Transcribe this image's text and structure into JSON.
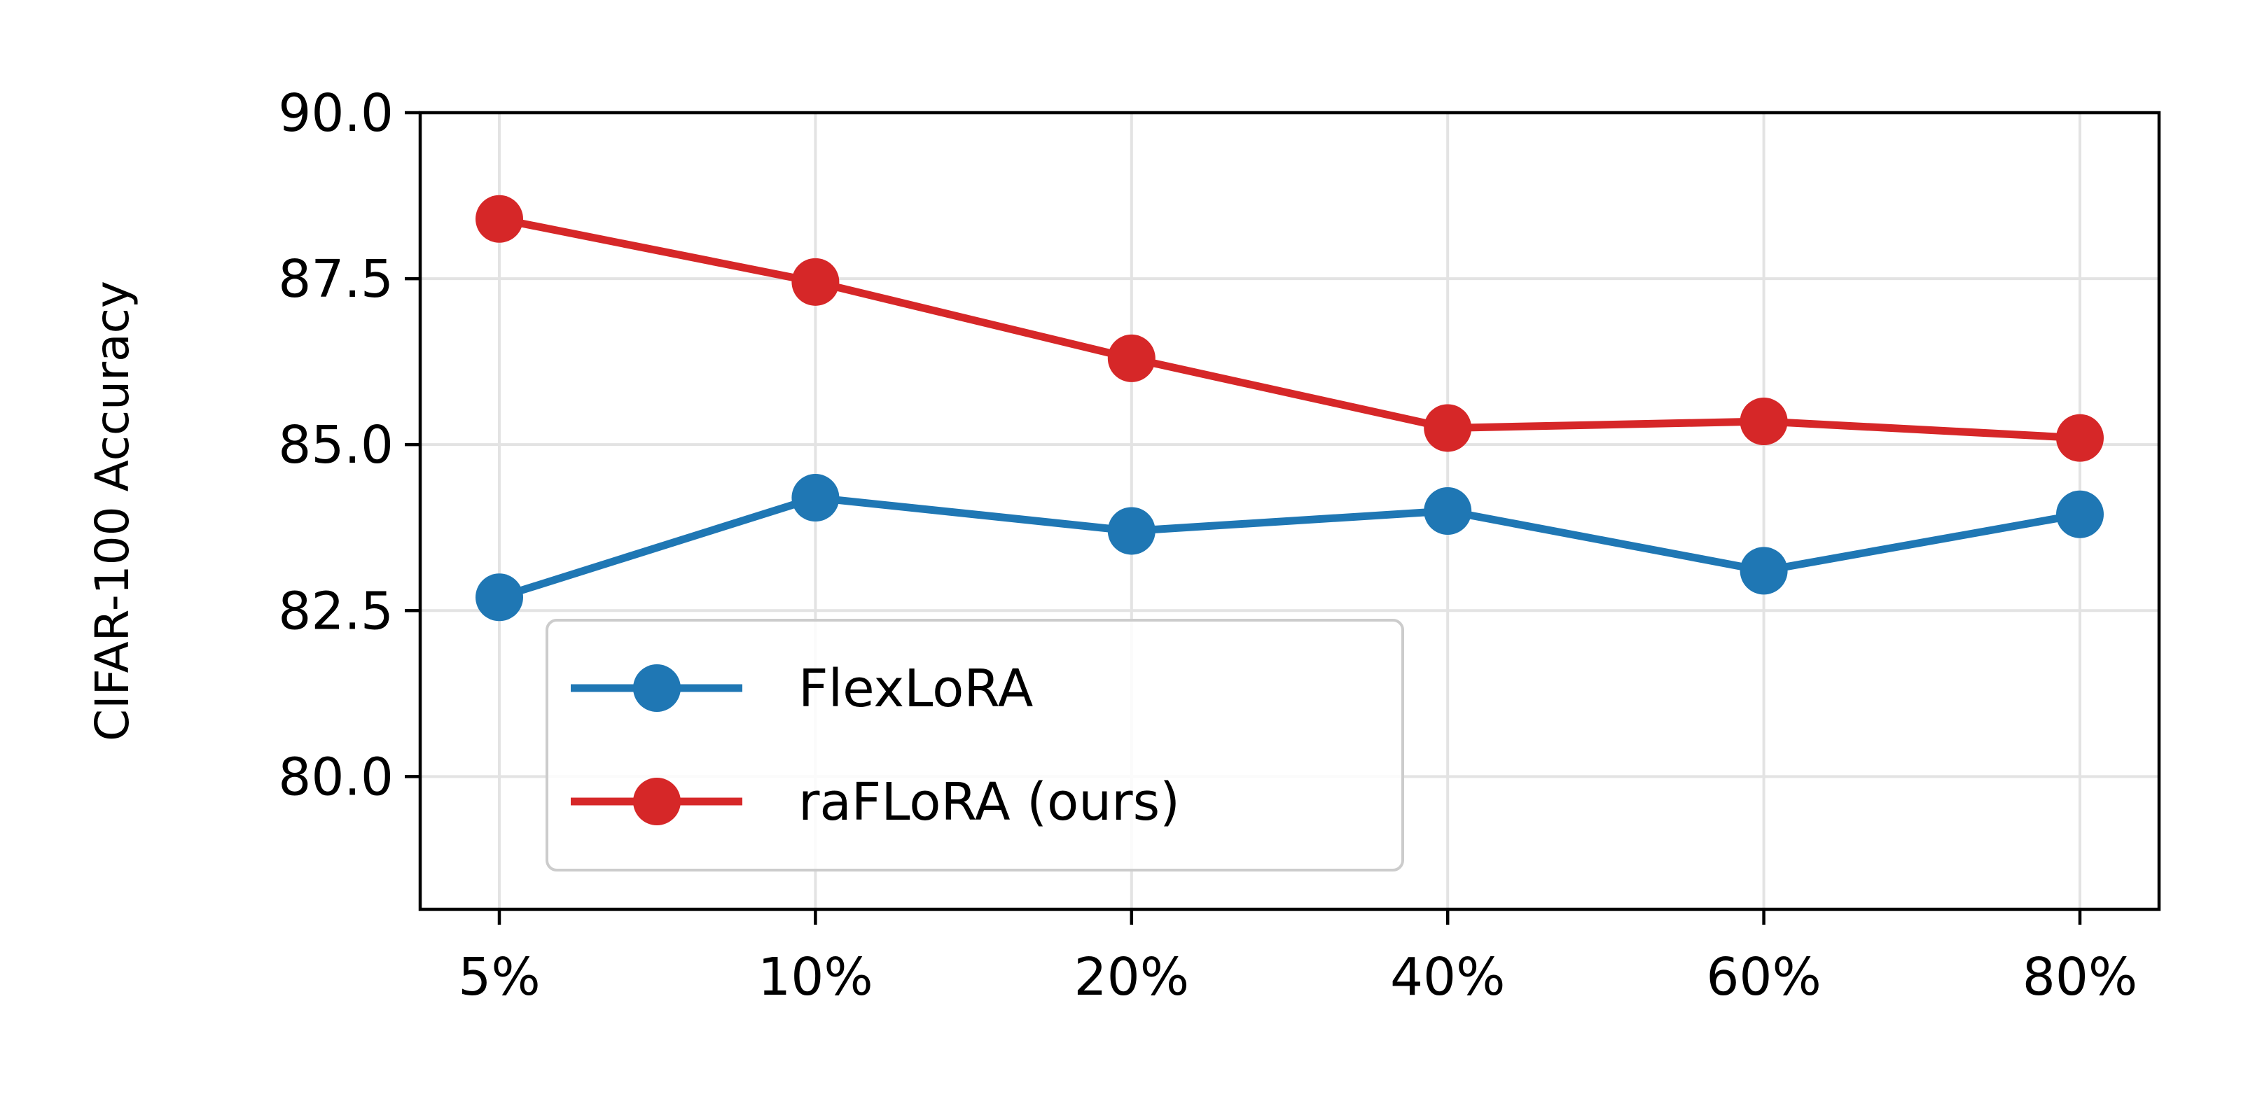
{
  "chart_data": {
    "type": "line",
    "categories": [
      "5%",
      "10%",
      "20%",
      "40%",
      "60%",
      "80%"
    ],
    "ylabel": "CIFAR-100 Accuracy",
    "xlabel": "",
    "ylim": [
      78.0,
      90.0
    ],
    "yticks": [
      80.0,
      82.5,
      85.0,
      87.5,
      90.0
    ],
    "ytick_labels": [
      "80.0",
      "82.5",
      "85.0",
      "87.5",
      "90.0"
    ],
    "grid": true,
    "legend_position": "lower-left",
    "series": [
      {
        "name": "FlexLoRA",
        "color": "#1f77b4",
        "values": [
          82.7,
          84.2,
          83.7,
          84.0,
          83.1,
          83.95
        ]
      },
      {
        "name": "raFLoRA (ours)",
        "color": "#d62728",
        "values": [
          88.4,
          87.45,
          86.3,
          85.25,
          85.35,
          85.1
        ]
      }
    ]
  }
}
